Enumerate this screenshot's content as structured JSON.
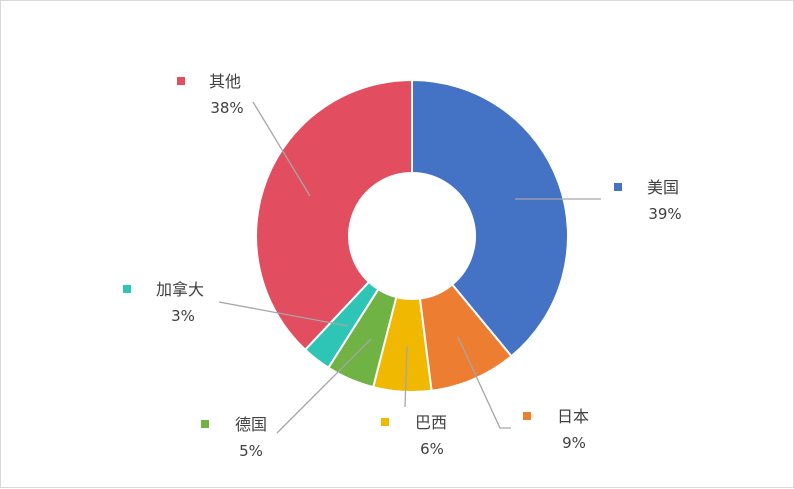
{
  "chart_data": {
    "type": "pie",
    "style": "donut",
    "title": "",
    "series": [
      {
        "name": "美国",
        "value": 39,
        "label": "39%",
        "color": "#4472C4"
      },
      {
        "name": "日本",
        "value": 9,
        "label": "9%",
        "color": "#ED7D31"
      },
      {
        "name": "巴西",
        "value": 6,
        "label": "6%",
        "color": "#F0B800"
      },
      {
        "name": "德国",
        "value": 5,
        "label": "5%",
        "color": "#70B244"
      },
      {
        "name": "加拿大",
        "value": 3,
        "label": "3%",
        "color": "#2EC4B6"
      },
      {
        "name": "其他",
        "value": 38,
        "label": "38%",
        "color": "#E24D5F"
      }
    ],
    "start_angle": "12 o'clock",
    "direction": "clockwise",
    "labels": "category name with legend key and percent, connected by leader lines"
  },
  "colors": {
    "leader_line": "#A6A6A6",
    "slice_border": "#FFFFFF",
    "text": "#404040",
    "frame_border": "#D9D9D9"
  }
}
